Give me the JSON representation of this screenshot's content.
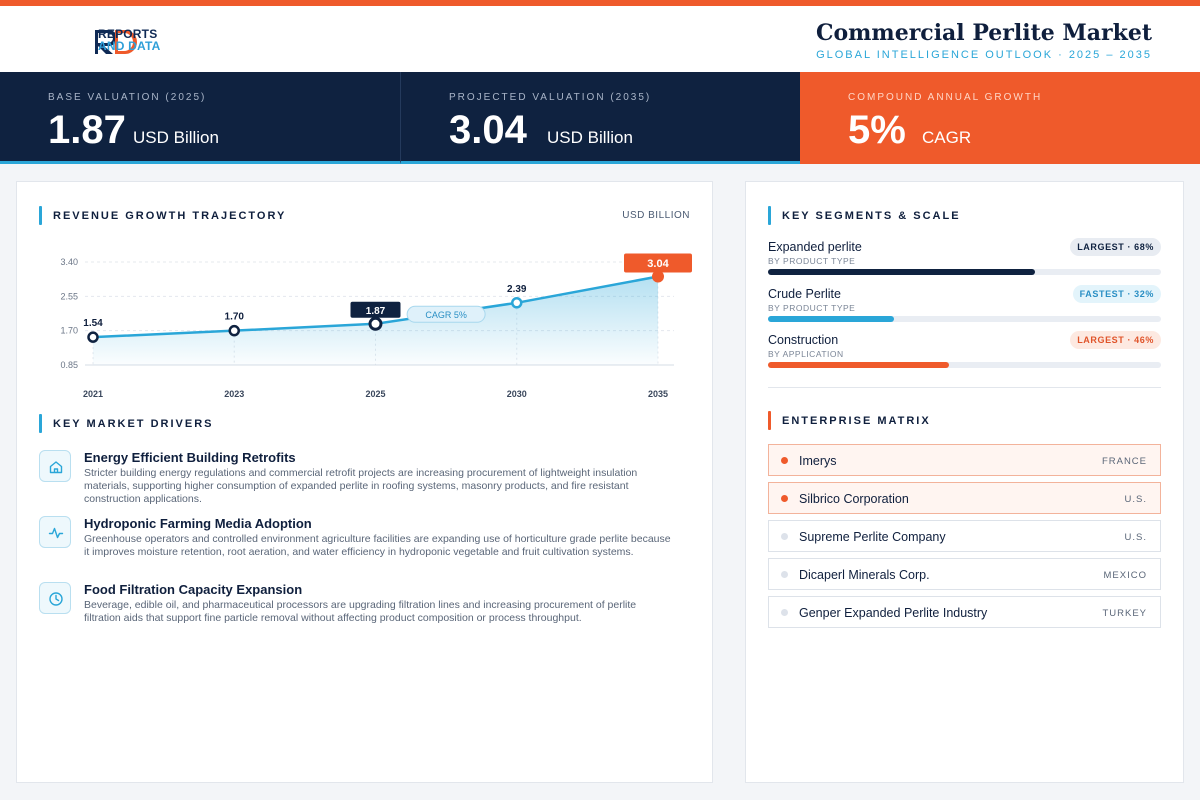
{
  "brand": {
    "line1": "REPORTS",
    "line2": "AND DATA"
  },
  "header": {
    "title": "Commercial Perlite Market",
    "subtitle": "GLOBAL INTELLIGENCE OUTLOOK  ·  2025 – 2035"
  },
  "kpis": [
    {
      "label": "BASE VALUATION (2025)",
      "value": "1.87",
      "unit": "USD Billion"
    },
    {
      "label": "PROJECTED VALUATION (2035)",
      "value": "3.04",
      "unit": "USD Billion"
    },
    {
      "label": "COMPOUND ANNUAL GROWTH",
      "value": "5%",
      "unit": "CAGR"
    }
  ],
  "revenue": {
    "heading": "REVENUE GROWTH TRAJECTORY",
    "unit": "USD BILLION",
    "cagr_tag": "CAGR 5%"
  },
  "chart_data": {
    "type": "line",
    "categories": [
      "2021",
      "2023",
      "2025",
      "2030",
      "2035"
    ],
    "values": [
      1.54,
      1.7,
      1.87,
      2.39,
      3.04
    ],
    "data_labels": [
      "1.54",
      "1.70",
      "1.87",
      "2.39",
      "3.04"
    ],
    "y_ticks": [
      "3.40",
      "2.55",
      "1.70",
      "0.85"
    ],
    "ylim": [
      0.85,
      3.4
    ],
    "highlight": {
      "base_index": 2,
      "projected_index": 4
    },
    "grid": true,
    "colors": {
      "line": "#2aa6d8",
      "base": "#0f2240",
      "projected": "#ef5a2b"
    }
  },
  "drivers": {
    "heading": "KEY MARKET DRIVERS",
    "items": [
      {
        "icon": "home-icon",
        "title": "Energy Efficient Building Retrofits",
        "desc": "Stricter building energy regulations and commercial retrofit projects are increasing procurement of lightweight insulation materials, supporting higher consumption of expanded perlite in roofing systems, masonry products, and fire resistant construction applications."
      },
      {
        "icon": "pulse-icon",
        "title": "Hydroponic Farming Media Adoption",
        "desc": "Greenhouse operators and controlled environment agriculture facilities are expanding use of horticulture grade perlite because it improves moisture retention, root aeration, and water efficiency in hydroponic vegetable and fruit cultivation systems."
      },
      {
        "icon": "clock-icon",
        "title": "Food Filtration Capacity Expansion",
        "desc": "Beverage, edible oil, and pharmaceutical processors are upgrading filtration lines and increasing procurement of perlite filtration aids that support fine particle removal without affecting product composition or process throughput."
      }
    ]
  },
  "segments": {
    "heading": "KEY SEGMENTS & SCALE",
    "items": [
      {
        "name": "Expanded perlite",
        "sub": "BY PRODUCT TYPE",
        "badge": "LARGEST · 68%",
        "share": 0.68,
        "color": "#0f2240",
        "badge_bg": "#e8ecf2",
        "badge_color": "#0f2240"
      },
      {
        "name": "Crude Perlite",
        "sub": "BY PRODUCT TYPE",
        "badge": "FASTEST · 32%",
        "share": 0.32,
        "color": "#2aa6d8",
        "badge_bg": "#e3f4fb",
        "badge_color": "#2a8fc4"
      },
      {
        "name": "Construction",
        "sub": "BY APPLICATION",
        "badge": "LARGEST · 46%",
        "share": 0.46,
        "color": "#ef5a2b",
        "badge_bg": "#fde9e1",
        "badge_color": "#e0542a"
      }
    ]
  },
  "enterprise": {
    "heading": "ENTERPRISE MATRIX",
    "items": [
      {
        "name": "Imerys",
        "country": "FRANCE",
        "highlight": true
      },
      {
        "name": "Silbrico Corporation",
        "country": "U.S.",
        "highlight": true
      },
      {
        "name": "Supreme Perlite Company",
        "country": "U.S.",
        "highlight": false
      },
      {
        "name": "Dicaperl Minerals Corp.",
        "country": "MEXICO",
        "highlight": false
      },
      {
        "name": "Genper Expanded Perlite Industry",
        "country": "TURKEY",
        "highlight": false
      }
    ]
  }
}
